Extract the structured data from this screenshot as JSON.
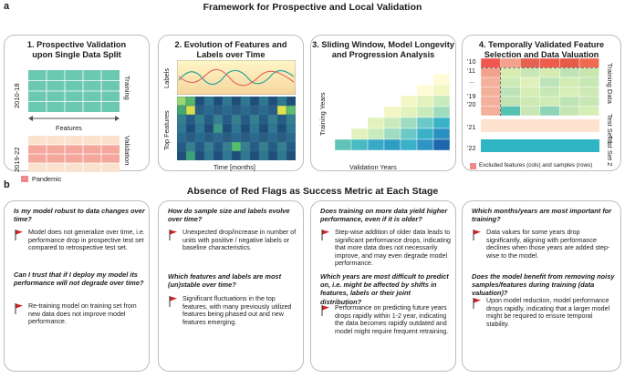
{
  "header": {
    "letter_a": "a",
    "title_a": "Framework for Prospective and Local Validation",
    "letter_b": "b",
    "title_b": "Absence of Red Flags as Success Metric at Each Stage"
  },
  "panels": [
    {
      "title_line1": "1. Prospective Validation",
      "title_line2": "upon Single Data Split",
      "year_top": "2010-18",
      "year_bottom": "2019-22",
      "side_top": "Training",
      "side_bottom": "Validation",
      "axis": "Features",
      "legend": "Pandemic"
    },
    {
      "title_line1": "2. Evolution of Features and",
      "title_line2": "Labels over Time",
      "labels_axis": "Labels",
      "features_axis": "Top Features",
      "time_axis": "Time [months]"
    },
    {
      "title_line1": "3. Sliding Window, Model Longevity",
      "title_line2": "and Progression Analysis",
      "y_axis": "Training Years",
      "x_axis": "Validation Years"
    },
    {
      "title_line1": "4. Temporally Validated Feature",
      "title_line2": "Selection and Data Valuation",
      "years": [
        "'10",
        "'11",
        "...",
        "'19",
        "'20",
        "'21",
        "'22"
      ],
      "side_training": "Training Data",
      "side_test1": "Test Set 1",
      "side_test2": "Test Set 2",
      "legend": "Excluded features (cols) and samples (rows)"
    }
  ],
  "questions": [
    {
      "q1": "Is my model robust to data changes over time?",
      "a1": "Model does not generalize over time, i.e. performance drop in prospective test set compared to retrospective test set.",
      "q2": "Can I trust that if I deploy my model its performance will not degrade over time?",
      "a2": "Re-training model on training set from new data does  not  improve model performance."
    },
    {
      "q1": "How do sample size and labels evolve over time?",
      "a1": "Unexpected drop/increase in number of units with positive / negative labels or baseline characteristics.",
      "q2": "Which features and labels are most (un)stable over time?",
      "a2": "Significant fluctuations in the top features, with many previously utilized features being phased out and new features emerging."
    },
    {
      "q1": "Does training on more data yield higher performance, even if it is older?",
      "a1": "Step-wise addition of older data leads to significant performance drops, indicating that more data does not necessarily improve, and may even degrade model performance.",
      "q2": "Which years are most difficult to predict on, i.e. might be affected by shifts in features, labels or their joint distribution?",
      "a2": "Performance on predicting future years drops rapidly within 1-2 year,  indicating the data becomes rapidly outdated and model might require frequent retraining."
    },
    {
      "q1": "Which months/years are most important for training?",
      "a1": "Data values for some years drop significantly, aligning with performance declines when those years are added step-wise to the model.",
      "q2": "Does the model benefit from removing noisy samples/features during training (data valuation)?",
      "a2": "Upon model reduction, model performance drops rapidly, indicating that a larger model might be required to ensure temporal stability."
    }
  ],
  "colors": {
    "teal": "#6cc9b1",
    "pink": "#f8b4a8",
    "red_flag": "#cc2222",
    "border": "#bdbdbd"
  }
}
